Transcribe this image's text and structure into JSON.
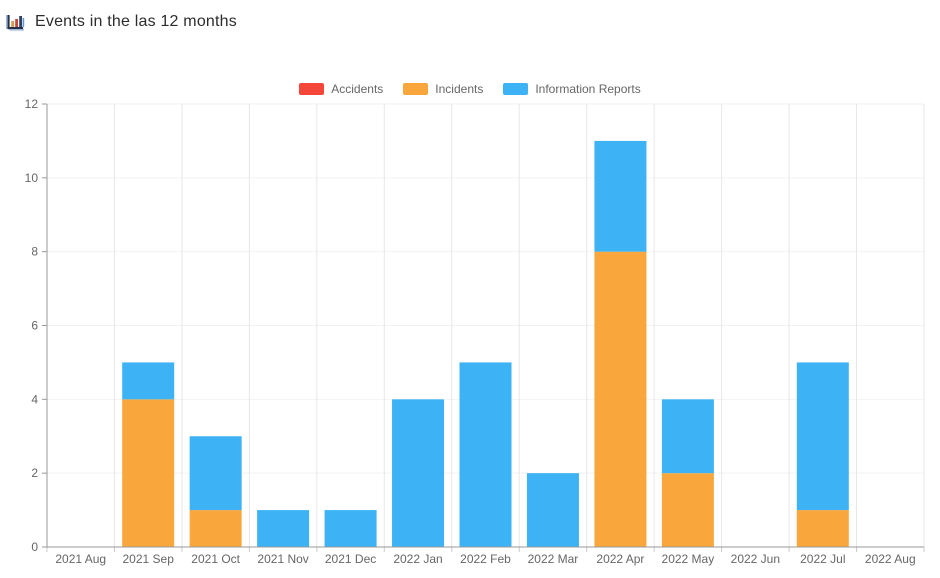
{
  "header": {
    "title": "Events in the las 12 months",
    "icon": "bar-chart-icon"
  },
  "colors": {
    "accidents": "#f4473a",
    "incidents": "#f9a73c",
    "information_reports": "#3db3f5",
    "axis_line": "#999999",
    "grid_horizontal": "#f2f2f2",
    "grid_vertical": "#e7e7e7",
    "tick_text": "#666666",
    "title_text": "#2d2d2d"
  },
  "chart_data": {
    "type": "bar",
    "stacked": true,
    "title": "Events in the las 12 months",
    "xlabel": "",
    "ylabel": "",
    "ylim": [
      0,
      12
    ],
    "yticks": [
      0,
      2,
      4,
      6,
      8,
      10,
      12
    ],
    "grid": true,
    "legend_position": "top",
    "categories": [
      "2021 Aug",
      "2021 Sep",
      "2021 Oct",
      "2021 Nov",
      "2021 Dec",
      "2022 Jan",
      "2022 Feb",
      "2022 Mar",
      "2022 Apr",
      "2022 May",
      "2022 Jun",
      "2022 Jul",
      "2022 Aug"
    ],
    "series": [
      {
        "name": "Accidents",
        "color": "#f4473a",
        "values": [
          0,
          0,
          0,
          0,
          0,
          0,
          0,
          0,
          0,
          0,
          0,
          0,
          0
        ]
      },
      {
        "name": "Incidents",
        "color": "#f9a73c",
        "values": [
          0,
          4,
          1,
          0,
          0,
          0,
          0,
          0,
          8,
          2,
          0,
          1,
          0
        ]
      },
      {
        "name": "Information Reports",
        "color": "#3db3f5",
        "values": [
          0,
          1,
          2,
          1,
          1,
          4,
          5,
          2,
          3,
          2,
          0,
          4,
          0
        ]
      }
    ],
    "totals": [
      0,
      5,
      3,
      1,
      1,
      4,
      5,
      2,
      11,
      4,
      0,
      5,
      0
    ]
  }
}
